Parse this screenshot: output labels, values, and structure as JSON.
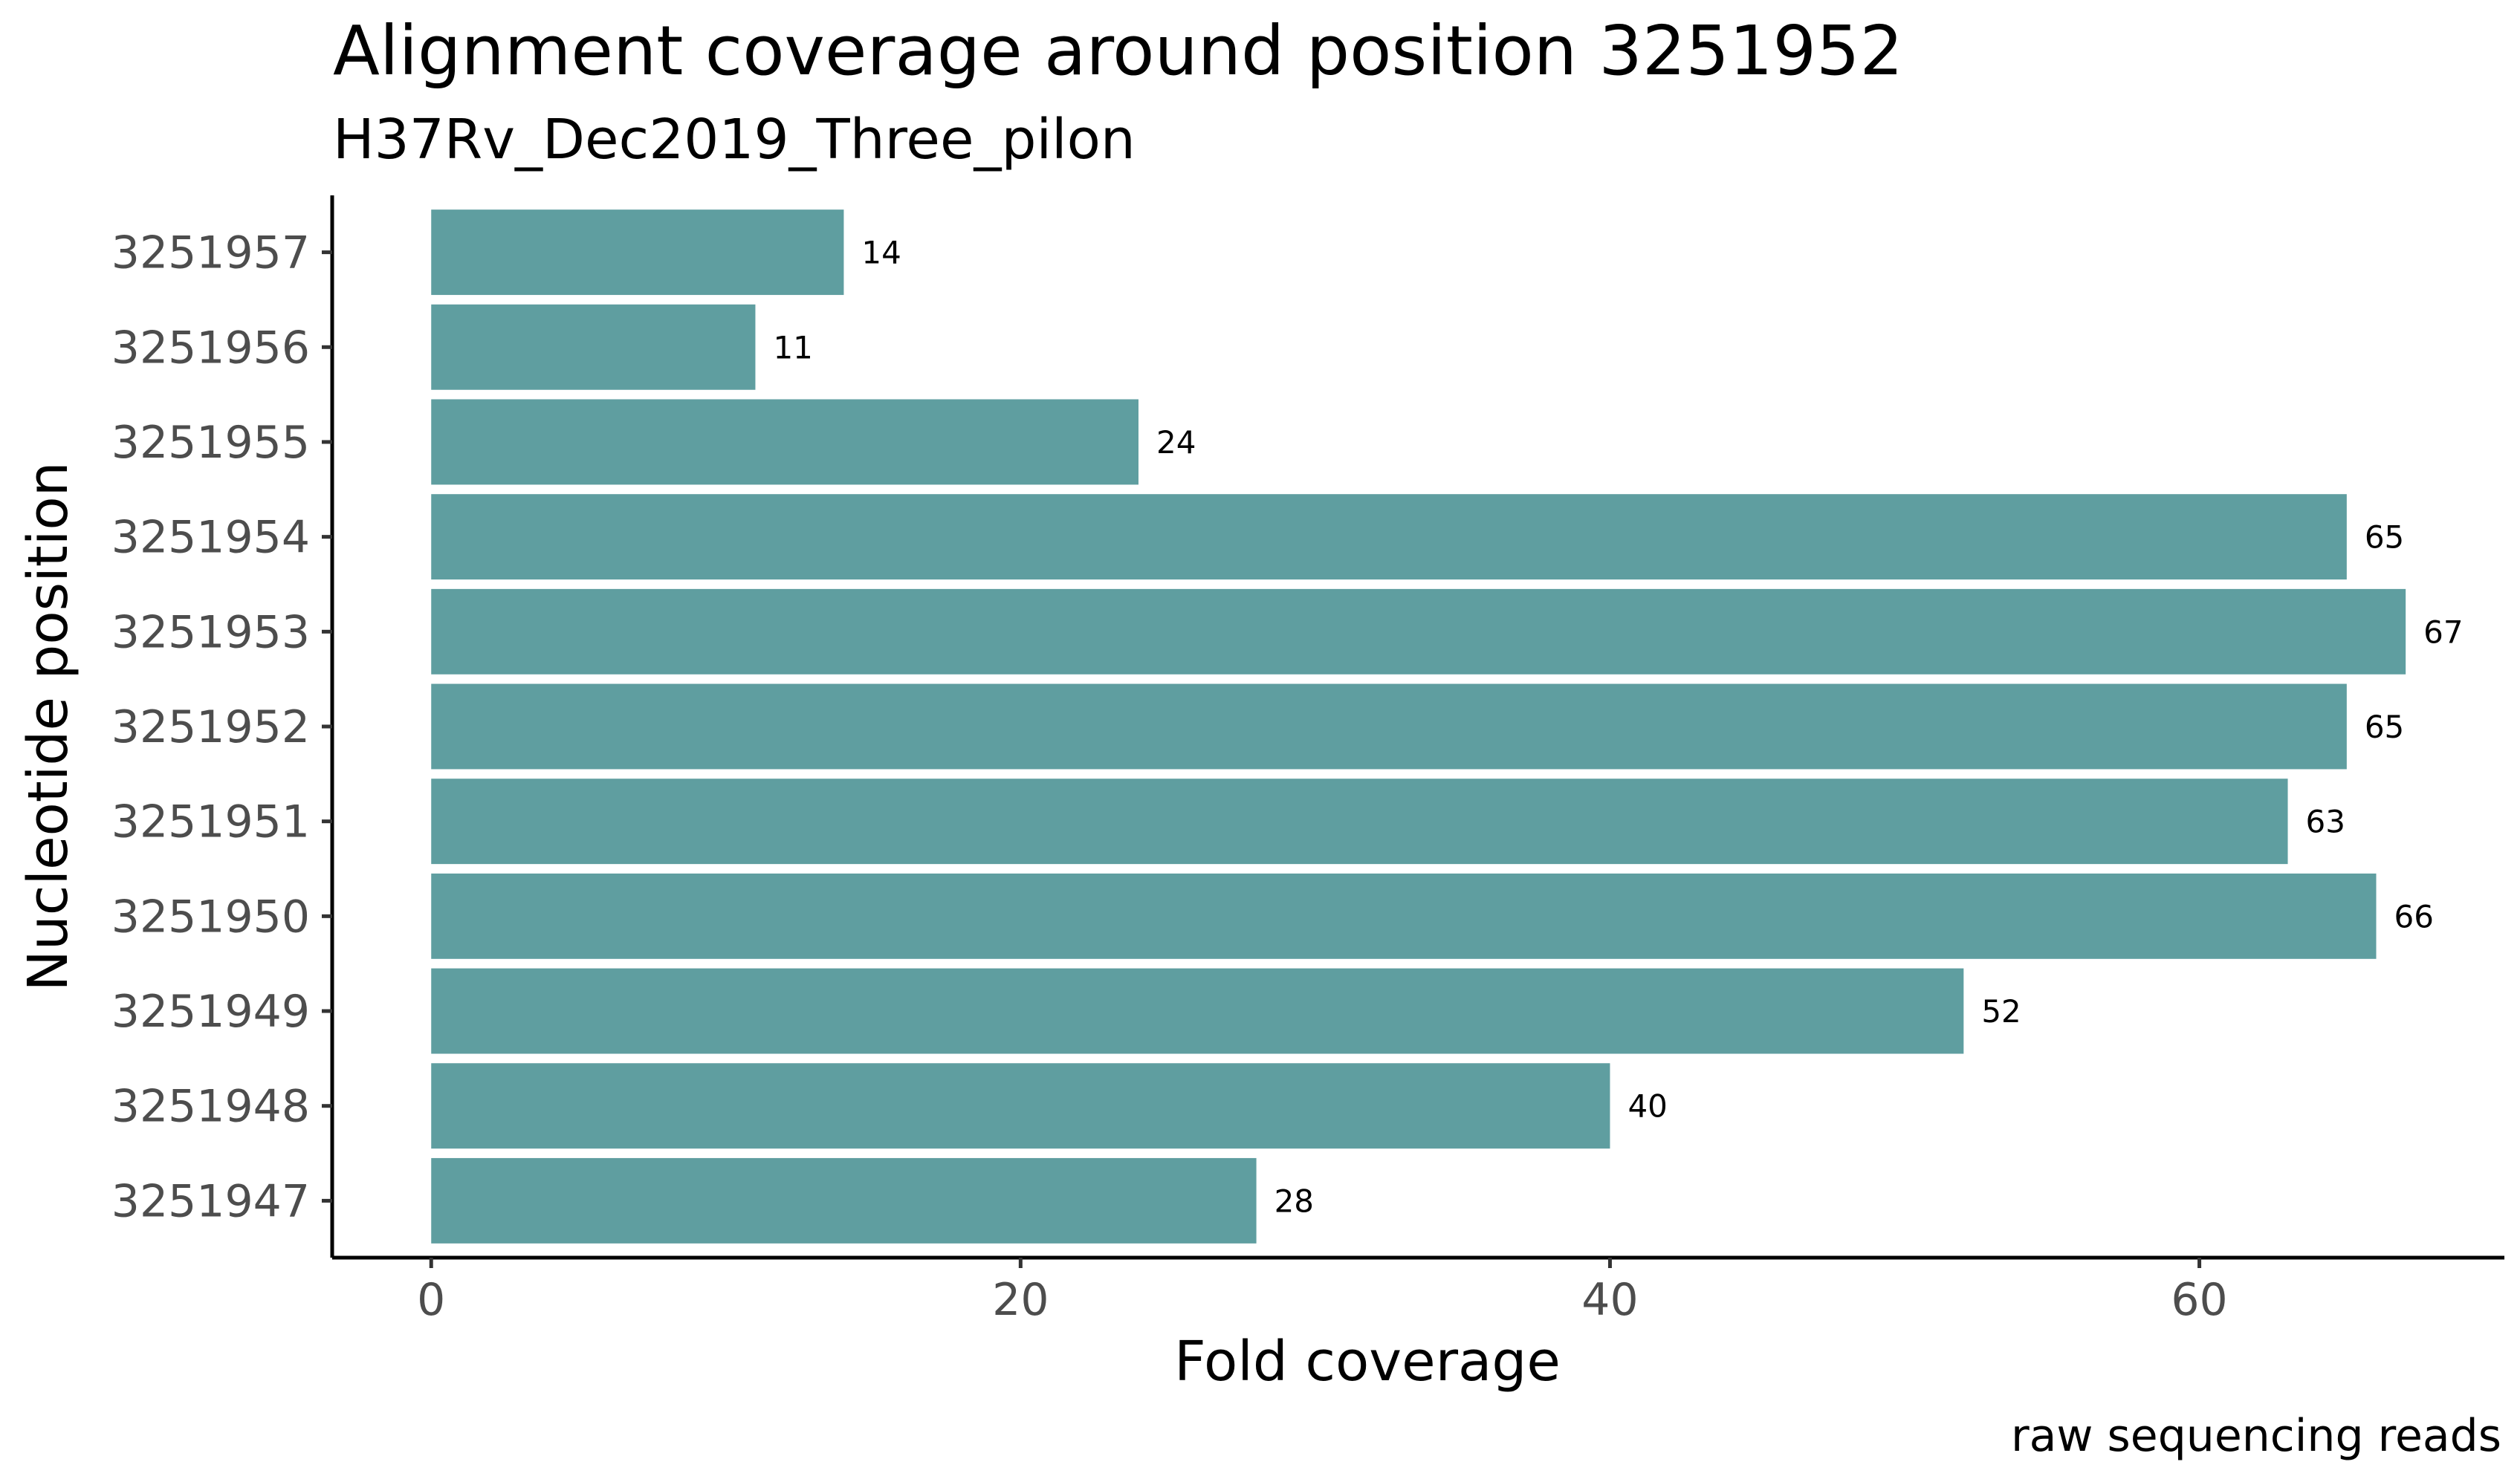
{
  "chart_data": {
    "type": "bar",
    "orientation": "horizontal",
    "title": "Alignment coverage around position 3251952",
    "subtitle": "H37Rv_Dec2019_Three_pilon",
    "xlabel": "Fold coverage",
    "ylabel": "Nucleotide position",
    "caption": "raw sequencing reads",
    "categories": [
      "3251947",
      "3251948",
      "3251949",
      "3251950",
      "3251951",
      "3251952",
      "3251953",
      "3251954",
      "3251955",
      "3251956",
      "3251957"
    ],
    "values": [
      28,
      40,
      52,
      66,
      63,
      65,
      67,
      65,
      24,
      11,
      14
    ],
    "value_labels": [
      "28",
      "40",
      "52",
      "66",
      "63",
      "65",
      "67",
      "65",
      "24",
      "11",
      "14"
    ],
    "x_ticks": [
      0,
      20,
      40,
      60
    ],
    "x_tick_labels": [
      "0",
      "20",
      "40",
      "60"
    ],
    "xlim": [
      -3.36,
      70.35
    ],
    "bar_color": "#5f9ea0",
    "grid": false,
    "legend": "none"
  }
}
